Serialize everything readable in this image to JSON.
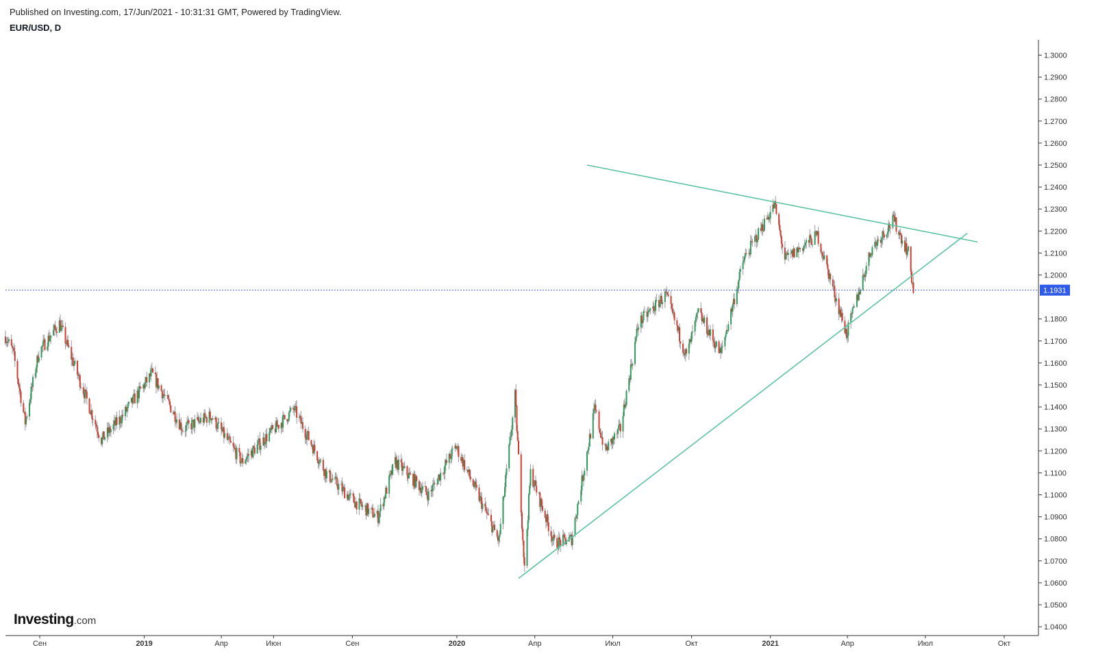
{
  "header": {
    "published": "Published on Investing.com, 17/Jun/2021 - 10:31:31 GMT, Powered by TradingView.",
    "symbol": "EUR/USD, D"
  },
  "logo": {
    "brand": "Investing",
    "domain": ".com"
  },
  "colors": {
    "up": "#2e9a5a",
    "down": "#d23a2e",
    "trendline": "#5cc2a0",
    "price_line": "#3a56d6",
    "price_tag_bg": "#2f5be8"
  },
  "chart_data": {
    "type": "candlestick",
    "symbol": "EUR/USD",
    "interval": "D",
    "y_axis": {
      "ylim": [
        1.036,
        1.307
      ],
      "ticks": [
        "1.0400",
        "1.0500",
        "1.0600",
        "1.0700",
        "1.0800",
        "1.0900",
        "1.1000",
        "1.1100",
        "1.1200",
        "1.1300",
        "1.1400",
        "1.1500",
        "1.1600",
        "1.1700",
        "1.1800",
        "1.1900",
        "1.2000",
        "1.2100",
        "1.2200",
        "1.2300",
        "1.2400",
        "1.2500",
        "1.2600",
        "1.2700",
        "1.2800",
        "1.2900",
        "1.3000"
      ],
      "position": "right"
    },
    "x_axis": {
      "range": [
        "2018-07-23",
        "2021-11-10"
      ],
      "ticks": [
        {
          "label": "Сен",
          "date": "2018-09-01",
          "bold": false
        },
        {
          "label": "2019",
          "date": "2019-01-01",
          "bold": true
        },
        {
          "label": "Апр",
          "date": "2019-04-01",
          "bold": false
        },
        {
          "label": "Июн",
          "date": "2019-06-01",
          "bold": false
        },
        {
          "label": "Сен",
          "date": "2019-09-01",
          "bold": false
        },
        {
          "label": "2020",
          "date": "2020-01-01",
          "bold": true
        },
        {
          "label": "Апр",
          "date": "2020-04-01",
          "bold": false
        },
        {
          "label": "Июл",
          "date": "2020-07-01",
          "bold": false
        },
        {
          "label": "Окт",
          "date": "2020-10-01",
          "bold": false
        },
        {
          "label": "2021",
          "date": "2021-01-01",
          "bold": true
        },
        {
          "label": "Апр",
          "date": "2021-04-01",
          "bold": false
        },
        {
          "label": "Июл",
          "date": "2021-07-01",
          "bold": false
        },
        {
          "label": "Окт",
          "date": "2021-10-01",
          "bold": false
        }
      ]
    },
    "last_price": "1.1931",
    "last_price_value": 1.1931,
    "price_path": [
      {
        "date": "2018-07-23",
        "value": 1.172
      },
      {
        "date": "2018-08-01",
        "value": 1.165
      },
      {
        "date": "2018-08-15",
        "value": 1.133
      },
      {
        "date": "2018-08-31",
        "value": 1.165
      },
      {
        "date": "2018-09-24",
        "value": 1.178
      },
      {
        "date": "2018-10-15",
        "value": 1.155
      },
      {
        "date": "2018-11-12",
        "value": 1.125
      },
      {
        "date": "2018-12-05",
        "value": 1.135
      },
      {
        "date": "2019-01-10",
        "value": 1.155
      },
      {
        "date": "2019-02-15",
        "value": 1.13
      },
      {
        "date": "2019-03-20",
        "value": 1.136
      },
      {
        "date": "2019-04-25",
        "value": 1.115
      },
      {
        "date": "2019-06-25",
        "value": 1.139
      },
      {
        "date": "2019-08-01",
        "value": 1.11
      },
      {
        "date": "2019-09-03",
        "value": 1.097
      },
      {
        "date": "2019-10-01",
        "value": 1.09
      },
      {
        "date": "2019-10-21",
        "value": 1.115
      },
      {
        "date": "2019-11-29",
        "value": 1.1
      },
      {
        "date": "2019-12-31",
        "value": 1.122
      },
      {
        "date": "2020-02-19",
        "value": 1.079
      },
      {
        "date": "2020-03-09",
        "value": 1.145
      },
      {
        "date": "2020-03-20",
        "value": 1.066
      },
      {
        "date": "2020-03-27",
        "value": 1.11
      },
      {
        "date": "2020-04-24",
        "value": 1.078
      },
      {
        "date": "2020-05-14",
        "value": 1.08
      },
      {
        "date": "2020-06-10",
        "value": 1.139
      },
      {
        "date": "2020-06-22",
        "value": 1.12
      },
      {
        "date": "2020-07-10",
        "value": 1.13
      },
      {
        "date": "2020-07-31",
        "value": 1.178
      },
      {
        "date": "2020-09-01",
        "value": 1.191
      },
      {
        "date": "2020-09-25",
        "value": 1.163
      },
      {
        "date": "2020-10-09",
        "value": 1.183
      },
      {
        "date": "2020-11-04",
        "value": 1.164
      },
      {
        "date": "2020-12-01",
        "value": 1.207
      },
      {
        "date": "2021-01-06",
        "value": 1.232
      },
      {
        "date": "2021-01-18",
        "value": 1.207
      },
      {
        "date": "2021-02-25",
        "value": 1.218
      },
      {
        "date": "2021-03-31",
        "value": 1.173
      },
      {
        "date": "2021-04-29",
        "value": 1.212
      },
      {
        "date": "2021-05-25",
        "value": 1.225
      },
      {
        "date": "2021-06-11",
        "value": 1.21
      },
      {
        "date": "2021-06-17",
        "value": 1.1931
      }
    ],
    "trendlines": [
      {
        "name": "upper",
        "from": {
          "date": "2020-06-01",
          "value": 1.25
        },
        "to": {
          "date": "2021-08-31",
          "value": 1.215
        }
      },
      {
        "name": "lower",
        "from": {
          "date": "2020-03-13",
          "value": 1.062
        },
        "to": {
          "date": "2021-08-19",
          "value": 1.219
        }
      }
    ]
  }
}
